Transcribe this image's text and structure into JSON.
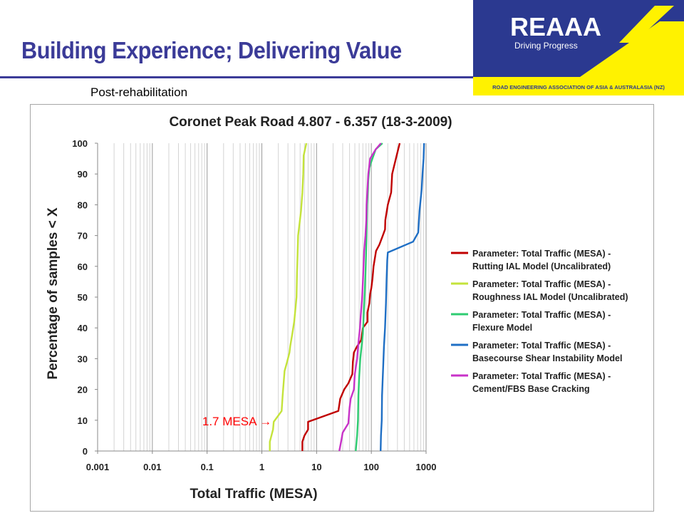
{
  "slide": {
    "title": "Building Experience; Delivering Value",
    "subtitle": "Post-rehabilitation"
  },
  "logo": {
    "wordmark": "REAAA",
    "tagline": "Driving Progress",
    "org_name": "ROAD ENGINEERING ASSOCIATION OF ASIA & AUSTRALASIA (NZ)",
    "colors": {
      "navy": "#2b3990",
      "yellow": "#fff200"
    }
  },
  "chart_data": {
    "type": "line",
    "title": "Coronet Peak Road 4.807 - 6.357 (18-3-2009)",
    "xlabel": "Total Traffic (MESA)",
    "ylabel": "Percentage of samples < X",
    "xscale": "log",
    "xlim": [
      0.001,
      1000
    ],
    "ylim": [
      0,
      100
    ],
    "xticks": [
      "0.001",
      "0.01",
      "0.1",
      "1",
      "10",
      "100",
      "1000"
    ],
    "yticks": [
      "0",
      "10",
      "20",
      "30",
      "40",
      "50",
      "60",
      "70",
      "80",
      "90",
      "100"
    ],
    "grid": true,
    "legend_position": "right",
    "annotation": {
      "text": "1.7 MESA ",
      "arrow": "→",
      "color": "#ff0000",
      "x": 1.7,
      "y": 9.5
    },
    "series": [
      {
        "name": "Parameter: Total Traffic (MESA) - Rutting IAL Model (Uncalibrated)",
        "color": "#c00000",
        "points": [
          [
            5.5,
            0
          ],
          [
            5.5,
            3
          ],
          [
            6,
            5
          ],
          [
            7,
            7
          ],
          [
            7,
            9.5
          ],
          [
            25,
            13
          ],
          [
            27,
            17
          ],
          [
            32,
            20
          ],
          [
            38,
            22
          ],
          [
            45,
            25
          ],
          [
            46,
            29
          ],
          [
            48,
            32
          ],
          [
            55,
            34
          ],
          [
            65,
            36
          ],
          [
            70,
            40
          ],
          [
            85,
            42
          ],
          [
            85,
            45
          ],
          [
            92,
            48
          ],
          [
            95,
            51
          ],
          [
            100,
            53
          ],
          [
            105,
            56
          ],
          [
            110,
            60
          ],
          [
            117,
            63
          ],
          [
            122,
            65
          ],
          [
            140,
            67
          ],
          [
            162,
            70
          ],
          [
            178,
            72
          ],
          [
            180,
            75
          ],
          [
            200,
            80
          ],
          [
            230,
            84
          ],
          [
            240,
            90
          ],
          [
            290,
            96
          ],
          [
            330,
            100
          ]
        ]
      },
      {
        "name": "Parameter: Total Traffic (MESA) - Roughness IAL Model (Uncalibrated)",
        "color": "#c4e33b",
        "points": [
          [
            1.4,
            0
          ],
          [
            1.4,
            3
          ],
          [
            1.6,
            7
          ],
          [
            1.65,
            9.5
          ],
          [
            2.3,
            13
          ],
          [
            2.4,
            18
          ],
          [
            2.6,
            26
          ],
          [
            2.9,
            29
          ],
          [
            3.2,
            32
          ],
          [
            3.3,
            34
          ],
          [
            3.6,
            38
          ],
          [
            3.9,
            42
          ],
          [
            4.3,
            50
          ],
          [
            4.4,
            58
          ],
          [
            4.5,
            64
          ],
          [
            4.6,
            70
          ],
          [
            5.2,
            78
          ],
          [
            5.5,
            84
          ],
          [
            5.7,
            90
          ],
          [
            5.8,
            96
          ],
          [
            6.5,
            100
          ]
        ]
      },
      {
        "name": "Parameter: Total Traffic (MESA) - Flexure Model",
        "color": "#2ecc71",
        "points": [
          [
            52,
            0
          ],
          [
            55,
            5
          ],
          [
            57,
            10
          ],
          [
            58,
            18
          ],
          [
            60,
            24
          ],
          [
            63,
            30
          ],
          [
            70,
            38
          ],
          [
            73,
            45
          ],
          [
            76,
            52
          ],
          [
            79,
            60
          ],
          [
            82,
            70
          ],
          [
            84,
            80
          ],
          [
            88,
            88
          ],
          [
            92,
            92
          ],
          [
            100,
            94
          ],
          [
            120,
            98
          ],
          [
            160,
            100
          ]
        ]
      },
      {
        "name": "Parameter: Total Traffic (MESA) - Basecourse Shear Instability Model",
        "color": "#1f6fc5",
        "points": [
          [
            148,
            0
          ],
          [
            150,
            5
          ],
          [
            155,
            10
          ],
          [
            157,
            18
          ],
          [
            165,
            28
          ],
          [
            170,
            34
          ],
          [
            178,
            40
          ],
          [
            185,
            48
          ],
          [
            190,
            56
          ],
          [
            195,
            62
          ],
          [
            200,
            64.5
          ],
          [
            580,
            68
          ],
          [
            720,
            71
          ],
          [
            760,
            78
          ],
          [
            830,
            85
          ],
          [
            860,
            90
          ],
          [
            900,
            95
          ],
          [
            920,
            100
          ]
        ]
      },
      {
        "name": "Parameter: Total Traffic (MESA) - Cement/FBS Base Cracking",
        "color": "#c832c8",
        "points": [
          [
            26,
            0
          ],
          [
            28,
            3
          ],
          [
            30,
            6
          ],
          [
            38,
            9
          ],
          [
            40,
            14
          ],
          [
            42,
            17
          ],
          [
            48,
            20
          ],
          [
            50,
            25
          ],
          [
            55,
            30
          ],
          [
            58,
            35
          ],
          [
            62,
            40
          ],
          [
            64,
            44
          ],
          [
            68,
            50
          ],
          [
            70,
            55
          ],
          [
            72,
            60
          ],
          [
            74,
            65
          ],
          [
            78,
            70
          ],
          [
            81,
            75
          ],
          [
            82,
            80
          ],
          [
            85,
            85
          ],
          [
            88,
            90
          ],
          [
            95,
            95
          ],
          [
            120,
            98
          ],
          [
            150,
            100
          ]
        ]
      }
    ]
  }
}
